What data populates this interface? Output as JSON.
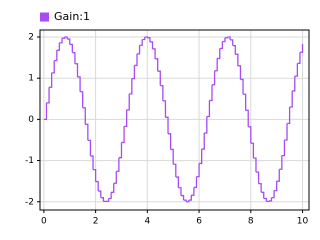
{
  "chart_data": {
    "type": "step",
    "series": [
      {
        "name": "Gain:1",
        "color": "#a64cf2",
        "values": [
          0,
          0.4,
          0.78,
          1.13,
          1.43,
          1.68,
          1.86,
          1.97,
          2.0,
          1.95,
          1.82,
          1.62,
          1.35,
          1.03,
          0.67,
          0.28,
          -0.12,
          -0.51,
          -0.89,
          -1.22,
          -1.51,
          -1.74,
          -1.9,
          -1.99,
          -1.99,
          -1.92,
          -1.77,
          -1.55,
          -1.26,
          -0.93,
          -0.56,
          -0.17,
          0.23,
          0.62,
          0.99,
          1.31,
          1.59,
          1.8,
          1.94,
          2.0,
          1.98,
          1.88,
          1.71,
          1.47,
          1.17,
          0.82,
          0.45,
          0.05,
          -0.35,
          -0.73,
          -1.09,
          -1.4,
          -1.66,
          -1.85,
          -1.96,
          -2.0,
          -1.96,
          -1.84,
          -1.65,
          -1.39,
          -1.07,
          -0.72,
          -0.33,
          0.07,
          0.46,
          0.84,
          1.18,
          1.48,
          1.72,
          1.89,
          1.98,
          2.0,
          1.93,
          1.79,
          1.58,
          1.3,
          0.97,
          0.61,
          0.22,
          -0.18,
          -0.58,
          -0.94,
          -1.28,
          -1.56,
          -1.77,
          -1.92,
          -1.99,
          -1.98,
          -1.9,
          -1.73,
          -1.5,
          -1.21,
          -0.88,
          -0.5,
          -0.1,
          0.3,
          0.69,
          1.05,
          1.36,
          1.63,
          1.83
        ]
      }
    ],
    "x": [
      0,
      0.1,
      0.2,
      0.3,
      0.4,
      0.5,
      0.6,
      0.7,
      0.8,
      0.9,
      1,
      1.1,
      1.2,
      1.3,
      1.4,
      1.5,
      1.6,
      1.7,
      1.8,
      1.9,
      2,
      2.1,
      2.2,
      2.3,
      2.4,
      2.5,
      2.6,
      2.7,
      2.8,
      2.9,
      3,
      3.1,
      3.2,
      3.3,
      3.4,
      3.5,
      3.6,
      3.7,
      3.8,
      3.9,
      4,
      4.1,
      4.2,
      4.3,
      4.4,
      4.5,
      4.6,
      4.7,
      4.8,
      4.9,
      5,
      5.1,
      5.2,
      5.3,
      5.4,
      5.5,
      5.6,
      5.7,
      5.8,
      5.9,
      6,
      6.1,
      6.2,
      6.3,
      6.4,
      6.5,
      6.6,
      6.7,
      6.8,
      6.9,
      7,
      7.1,
      7.2,
      7.3,
      7.4,
      7.5,
      7.6,
      7.7,
      7.8,
      7.9,
      8,
      8.1,
      8.2,
      8.3,
      8.4,
      8.5,
      8.6,
      8.7,
      8.8,
      8.9,
      9,
      9.1,
      9.2,
      9.3,
      9.4,
      9.5,
      9.6,
      9.7,
      9.8,
      9.9,
      10
    ],
    "xlim": [
      -0.15,
      10.25
    ],
    "ylim": [
      -2.2,
      2.17
    ],
    "xticks": [
      0,
      2,
      4,
      6,
      8,
      10
    ],
    "yticks": [
      -2,
      -1,
      0,
      1,
      2
    ],
    "grid": true,
    "legend": "top-left"
  }
}
